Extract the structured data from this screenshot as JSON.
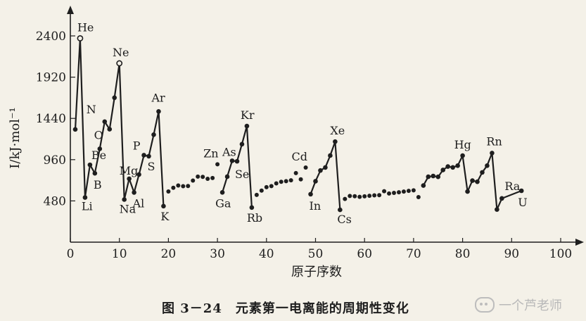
{
  "chart_data": {
    "type": "line",
    "title": "",
    "caption": "图 3－24　元素第一电离能的周期性变化",
    "xlabel": "原子序数",
    "ylabel": "I/kJ·mol⁻¹",
    "xlim": [
      0,
      100
    ],
    "ylim": [
      0,
      2600
    ],
    "xticks": [
      0,
      10,
      20,
      30,
      40,
      50,
      60,
      70,
      80,
      90,
      100
    ],
    "yticks": [
      480,
      960,
      1440,
      1920,
      2400
    ],
    "grid": false,
    "legend": "none",
    "solid_segments": [
      [
        1,
        2,
        3,
        4,
        5,
        6,
        7,
        8,
        9,
        10,
        11,
        12,
        13,
        14,
        15,
        16,
        17,
        18,
        19
      ],
      [
        31,
        32,
        33,
        34,
        35,
        36,
        37
      ],
      [
        49,
        50,
        51,
        52,
        53,
        54,
        55
      ],
      [
        72,
        73,
        74,
        75,
        76,
        77,
        78,
        79,
        80,
        81,
        82,
        83,
        84,
        85,
        86,
        87,
        88,
        89,
        90,
        91,
        92
      ]
    ],
    "points": [
      {
        "z": 1,
        "ie": 1312
      },
      {
        "z": 2,
        "ie": 2372,
        "label": "He"
      },
      {
        "z": 3,
        "ie": 520,
        "label": "Li"
      },
      {
        "z": 4,
        "ie": 900,
        "label": "Be"
      },
      {
        "z": 5,
        "ie": 801,
        "label": "B"
      },
      {
        "z": 6,
        "ie": 1086
      },
      {
        "z": 7,
        "ie": 1402,
        "label": "N"
      },
      {
        "z": 8,
        "ie": 1314,
        "label": "O"
      },
      {
        "z": 9,
        "ie": 1681
      },
      {
        "z": 10,
        "ie": 2081,
        "label": "Ne"
      },
      {
        "z": 11,
        "ie": 496,
        "label": "Na"
      },
      {
        "z": 12,
        "ie": 738,
        "label": "Mg"
      },
      {
        "z": 13,
        "ie": 578,
        "label": "Al"
      },
      {
        "z": 14,
        "ie": 787
      },
      {
        "z": 15,
        "ie": 1012,
        "label": "P"
      },
      {
        "z": 16,
        "ie": 1000,
        "label": "S"
      },
      {
        "z": 17,
        "ie": 1251
      },
      {
        "z": 18,
        "ie": 1521,
        "label": "Ar"
      },
      {
        "z": 19,
        "ie": 419,
        "label": "K"
      },
      {
        "z": 20,
        "ie": 590
      },
      {
        "z": 21,
        "ie": 633
      },
      {
        "z": 22,
        "ie": 659
      },
      {
        "z": 23,
        "ie": 651
      },
      {
        "z": 24,
        "ie": 653
      },
      {
        "z": 25,
        "ie": 717
      },
      {
        "z": 26,
        "ie": 763
      },
      {
        "z": 27,
        "ie": 760
      },
      {
        "z": 28,
        "ie": 737
      },
      {
        "z": 29,
        "ie": 746
      },
      {
        "z": 30,
        "ie": 906,
        "label": "Zn"
      },
      {
        "z": 31,
        "ie": 579,
        "label": "Ga"
      },
      {
        "z": 32,
        "ie": 762
      },
      {
        "z": 33,
        "ie": 947,
        "label": "As"
      },
      {
        "z": 34,
        "ie": 941,
        "label": "Se"
      },
      {
        "z": 35,
        "ie": 1140
      },
      {
        "z": 36,
        "ie": 1351,
        "label": "Kr"
      },
      {
        "z": 37,
        "ie": 403,
        "label": "Rb"
      },
      {
        "z": 38,
        "ie": 550
      },
      {
        "z": 39,
        "ie": 600
      },
      {
        "z": 40,
        "ie": 640
      },
      {
        "z": 41,
        "ie": 652
      },
      {
        "z": 42,
        "ie": 684
      },
      {
        "z": 43,
        "ie": 702
      },
      {
        "z": 44,
        "ie": 710
      },
      {
        "z": 45,
        "ie": 720
      },
      {
        "z": 46,
        "ie": 804
      },
      {
        "z": 47,
        "ie": 731
      },
      {
        "z": 48,
        "ie": 868,
        "label": "Cd"
      },
      {
        "z": 49,
        "ie": 558,
        "label": "In"
      },
      {
        "z": 50,
        "ie": 709
      },
      {
        "z": 51,
        "ie": 834
      },
      {
        "z": 52,
        "ie": 869
      },
      {
        "z": 53,
        "ie": 1008
      },
      {
        "z": 54,
        "ie": 1170,
        "label": "Xe"
      },
      {
        "z": 55,
        "ie": 376,
        "label": "Cs"
      },
      {
        "z": 56,
        "ie": 503
      },
      {
        "z": 57,
        "ie": 538
      },
      {
        "z": 58,
        "ie": 534
      },
      {
        "z": 59,
        "ie": 527
      },
      {
        "z": 60,
        "ie": 533
      },
      {
        "z": 61,
        "ie": 540
      },
      {
        "z": 62,
        "ie": 545
      },
      {
        "z": 63,
        "ie": 547
      },
      {
        "z": 64,
        "ie": 593
      },
      {
        "z": 65,
        "ie": 566
      },
      {
        "z": 66,
        "ie": 573
      },
      {
        "z": 67,
        "ie": 581
      },
      {
        "z": 68,
        "ie": 589
      },
      {
        "z": 69,
        "ie": 597
      },
      {
        "z": 70,
        "ie": 603
      },
      {
        "z": 71,
        "ie": 524
      },
      {
        "z": 72,
        "ie": 659
      },
      {
        "z": 73,
        "ie": 761
      },
      {
        "z": 74,
        "ie": 770
      },
      {
        "z": 75,
        "ie": 760
      },
      {
        "z": 76,
        "ie": 840
      },
      {
        "z": 77,
        "ie": 880
      },
      {
        "z": 78,
        "ie": 870
      },
      {
        "z": 79,
        "ie": 890
      },
      {
        "z": 80,
        "ie": 1007,
        "label": "Hg"
      },
      {
        "z": 81,
        "ie": 589
      },
      {
        "z": 82,
        "ie": 716
      },
      {
        "z": 83,
        "ie": 703
      },
      {
        "z": 84,
        "ie": 812
      },
      {
        "z": 85,
        "ie": 890
      },
      {
        "z": 86,
        "ie": 1037,
        "label": "Rn"
      },
      {
        "z": 87,
        "ie": 380
      },
      {
        "z": 88,
        "ie": 509,
        "label": "Ra"
      },
      {
        "z": 92,
        "ie": 598,
        "label": "U"
      }
    ]
  },
  "watermark": "一个芦老师",
  "colors": {
    "ink": "#1e1e1e",
    "paper": "#f4f1e8",
    "watermark": "#b9b9b9"
  }
}
